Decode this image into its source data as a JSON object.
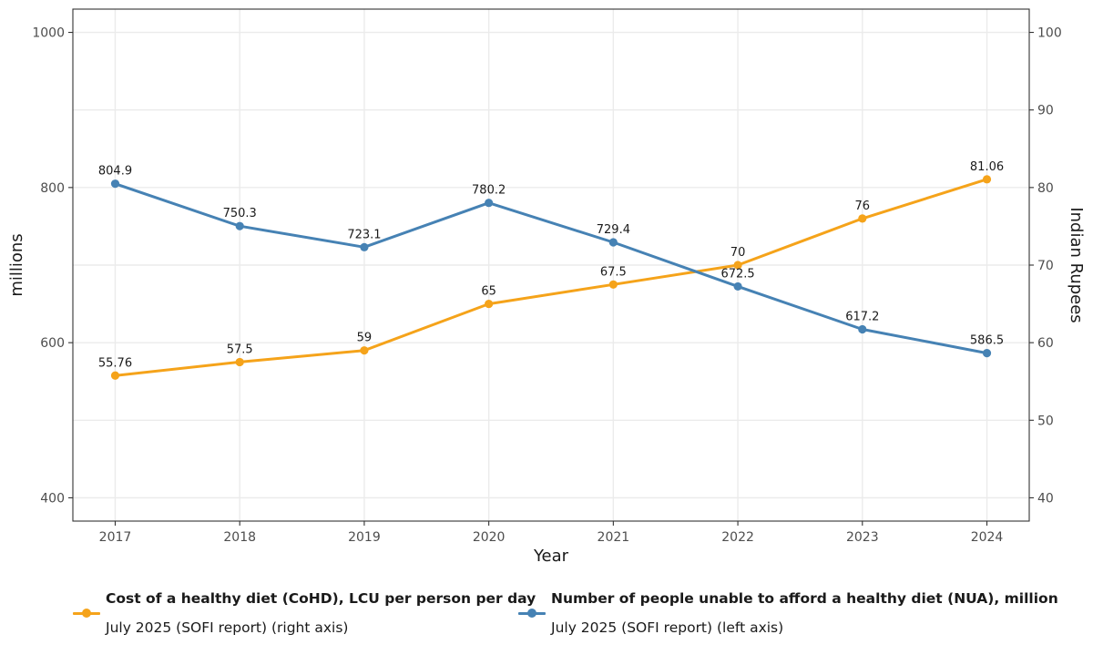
{
  "chart_data": {
    "type": "line",
    "x": [
      2017,
      2018,
      2019,
      2020,
      2021,
      2022,
      2023,
      2024
    ],
    "xlabel": "Year",
    "ylabel_left": "millions",
    "ylabel_right": "Indian Rupees",
    "ylim_left": [
      370,
      1030
    ],
    "ylim_right": [
      37,
      103
    ],
    "yticks_left": [
      "400",
      "600",
      "800",
      "1000"
    ],
    "yticks_right": [
      "40",
      "50",
      "60",
      "70",
      "80",
      "90",
      "100"
    ],
    "grid": true,
    "legend_placement": "bottom",
    "series": [
      {
        "name": "Cost of a healthy diet (CoHD), LCU per person per day",
        "subtitle": "July 2025 (SOFI report) (right axis)",
        "axis": "right",
        "color": "#F5A31A",
        "values": [
          55.76,
          57.5,
          59,
          65,
          67.5,
          70,
          76,
          81.06
        ],
        "labels": [
          "55.76",
          "57.5",
          "59",
          "65",
          "67.5",
          "70",
          "76",
          "81.06"
        ]
      },
      {
        "name": "Number of people unable to afford a healthy diet (NUA), million",
        "subtitle": "July 2025 (SOFI report) (left axis)",
        "axis": "left",
        "color": "#4682B4",
        "values": [
          804.9,
          750.3,
          723.1,
          780.2,
          729.4,
          672.5,
          617.2,
          586.5
        ],
        "labels": [
          "804.9",
          "750.3",
          "723.1",
          "780.2",
          "729.4",
          "672.5",
          "617.2",
          "586.5"
        ]
      }
    ]
  }
}
